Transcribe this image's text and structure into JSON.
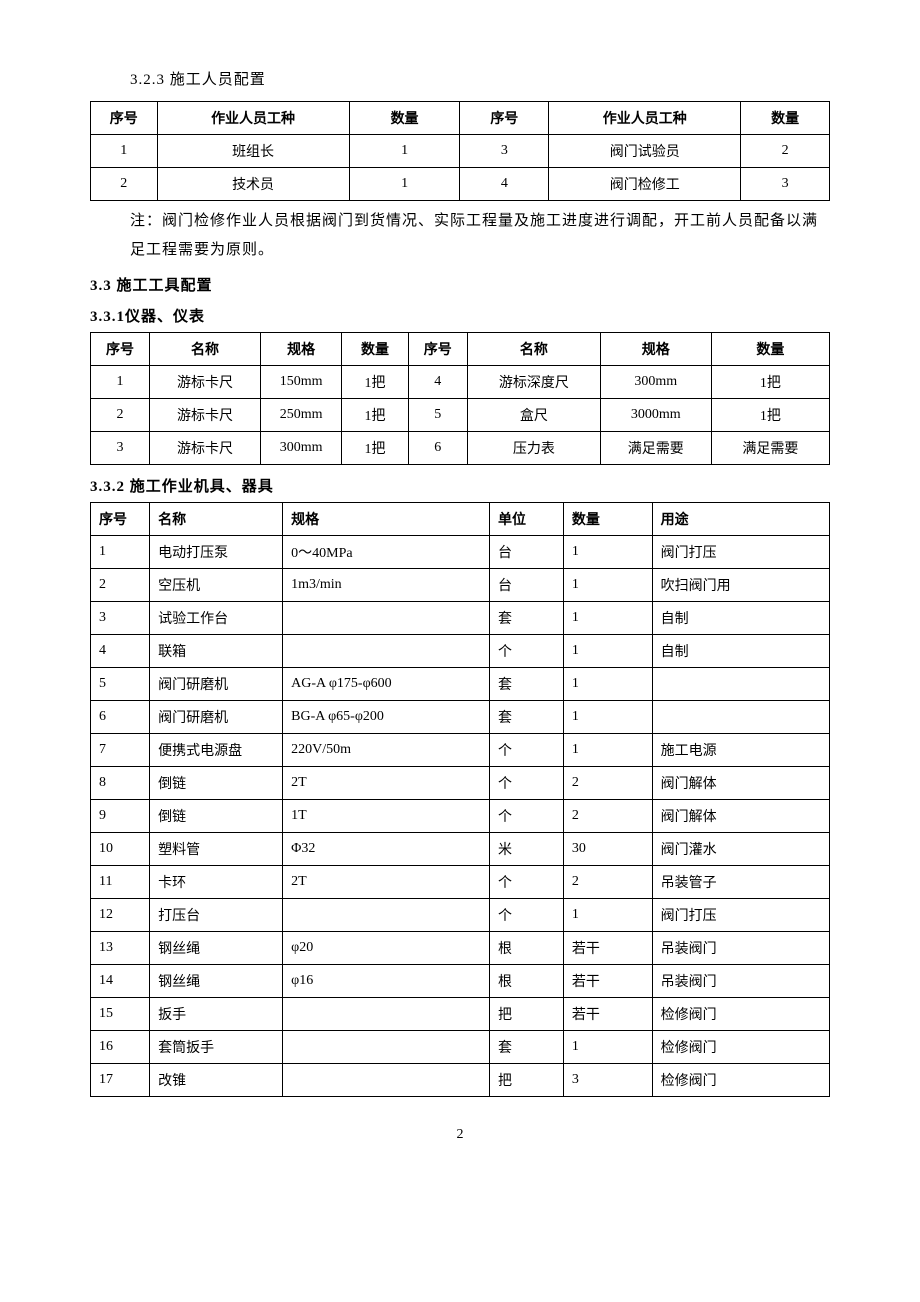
{
  "s323": {
    "heading": "3.2.3 施工人员配置",
    "table": {
      "headers": [
        "序号",
        "作业人员工种",
        "数量",
        "序号",
        "作业人员工种",
        "数量"
      ],
      "rows": [
        [
          "1",
          "班组长",
          "1",
          "3",
          "阀门试验员",
          "2"
        ],
        [
          "2",
          "技术员",
          "1",
          "4",
          "阀门检修工",
          "3"
        ]
      ]
    },
    "note": "注：阀门检修作业人员根据阀门到货情况、实际工程量及施工进度进行调配，开工前人员配备以满足工程需要为原则。"
  },
  "s33": {
    "heading": "3.3 施工工具配置"
  },
  "s331": {
    "heading": "3.3.1仪器、仪表",
    "table": {
      "headers": [
        "序号",
        "名称",
        "规格",
        "数量",
        "序号",
        "名称",
        "规格",
        "数量"
      ],
      "rows": [
        [
          "1",
          "游标卡尺",
          "150mm",
          "1把",
          "4",
          "游标深度尺",
          "300mm",
          "1把"
        ],
        [
          "2",
          "游标卡尺",
          "250mm",
          "1把",
          "5",
          "盒尺",
          "3000mm",
          "1把"
        ],
        [
          "3",
          "游标卡尺",
          "300mm",
          "1把",
          "6",
          "压力表",
          "满足需要",
          "满足需要"
        ]
      ]
    }
  },
  "s332": {
    "heading": "3.3.2 施工作业机具、器具",
    "table": {
      "headers": [
        "序号",
        "名称",
        "规格",
        "单位",
        "数量",
        "用途"
      ],
      "rows": [
        [
          "1",
          "电动打压泵",
          "0～40MPa",
          "台",
          "1",
          "阀门打压"
        ],
        [
          "2",
          "空压机",
          "1m3/min",
          "台",
          "1",
          "吹扫阀门用"
        ],
        [
          "3",
          "试验工作台",
          "",
          "套",
          "1",
          "自制"
        ],
        [
          "4",
          "联箱",
          "",
          "个",
          "1",
          "自制"
        ],
        [
          "5",
          "阀门研磨机",
          "AG-A φ175-φ600",
          "套",
          "1",
          ""
        ],
        [
          "6",
          "阀门研磨机",
          "BG-A φ65-φ200",
          "套",
          "1",
          ""
        ],
        [
          "7",
          "便携式电源盘",
          "220V/50m",
          "个",
          "1",
          "施工电源"
        ],
        [
          "8",
          "倒链",
          "2T",
          "个",
          "2",
          "阀门解体"
        ],
        [
          "9",
          "倒链",
          "1T",
          "个",
          "2",
          "阀门解体"
        ],
        [
          "10",
          "塑料管",
          "Φ32",
          "米",
          "30",
          "阀门灌水"
        ],
        [
          "11",
          "卡环",
          "2T",
          "个",
          "2",
          "吊装管子"
        ],
        [
          "12",
          "打压台",
          "",
          "个",
          "1",
          "阀门打压"
        ],
        [
          "13",
          "钢丝绳",
          "φ20",
          "根",
          "若干",
          "吊装阀门"
        ],
        [
          "14",
          "钢丝绳",
          "φ16",
          "根",
          "若干",
          "吊装阀门"
        ],
        [
          "15",
          "扳手",
          "",
          "把",
          "若干",
          "检修阀门"
        ],
        [
          "16",
          "套筒扳手",
          "",
          "套",
          "1",
          "检修阀门"
        ],
        [
          "17",
          "改锥",
          "",
          "把",
          "3",
          "检修阀门"
        ]
      ]
    }
  },
  "pageNumber": "2"
}
